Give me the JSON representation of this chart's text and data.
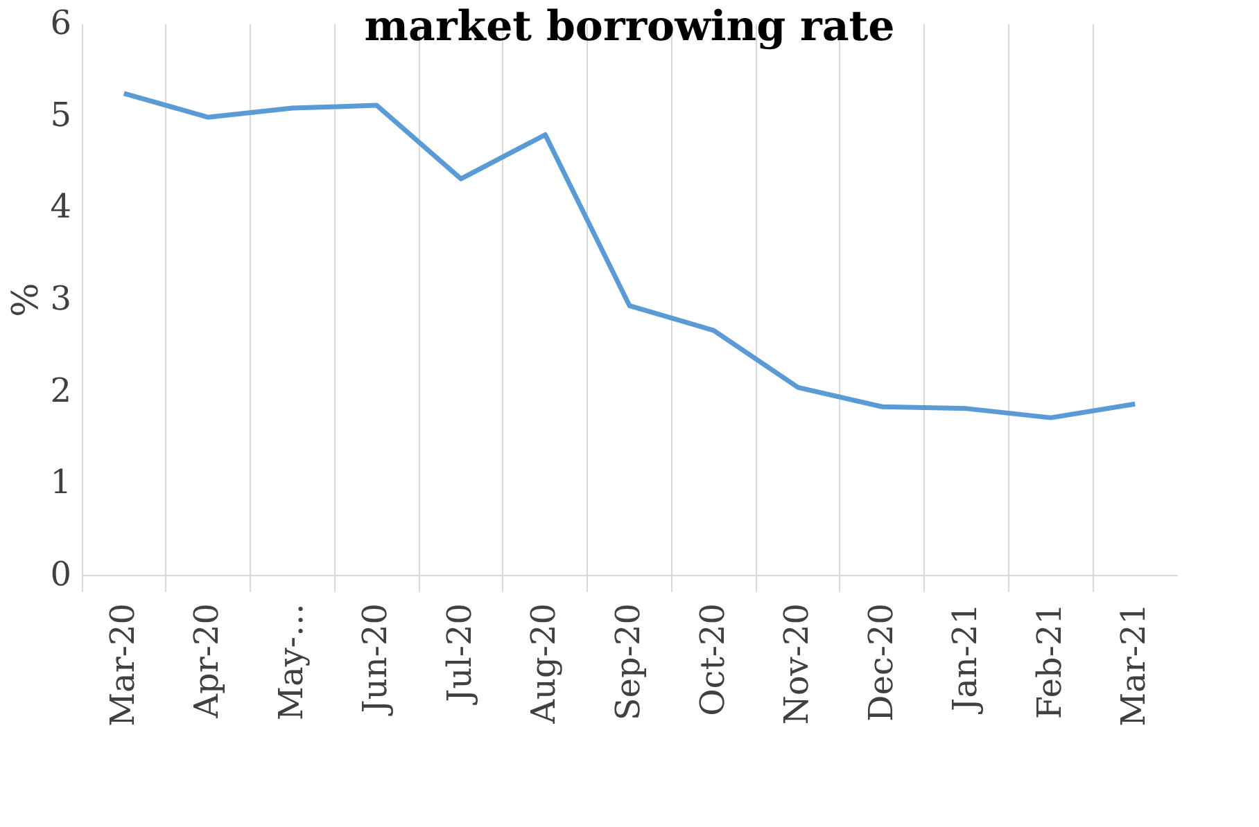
{
  "chart_data": {
    "type": "line",
    "title": "market borrowing rate",
    "ylabel": "%",
    "categories": [
      "Mar-20",
      "Apr-20",
      "May-…",
      "Jun-20",
      "Jul-20",
      "Aug-20",
      "Sep-20",
      "Oct-20",
      "Nov-20",
      "Dec-20",
      "Jan-21",
      "Feb-21",
      "Mar-21"
    ],
    "series": [
      {
        "color": "#5b9bd5",
        "values": [
          5.24,
          4.98,
          5.08,
          5.11,
          4.31,
          4.79,
          2.93,
          2.66,
          2.04,
          1.83,
          1.81,
          1.71,
          1.86
        ]
      }
    ],
    "ylim": [
      0,
      6
    ],
    "yticks": [
      0,
      1,
      2,
      3,
      4,
      5,
      6
    ],
    "grid": "x",
    "legend": false,
    "marker": "none",
    "line_style": "solid"
  }
}
